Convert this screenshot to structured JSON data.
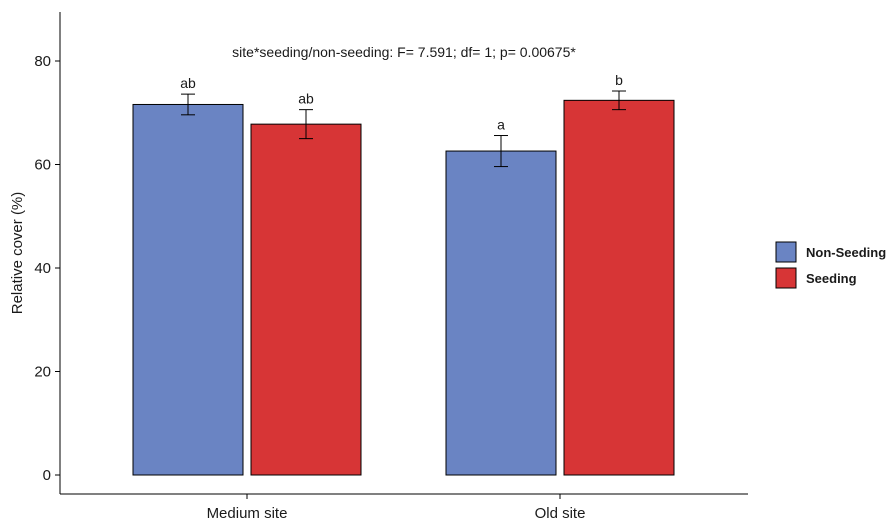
{
  "chart_data": {
    "type": "bar",
    "title": "",
    "annotation": "site*seeding/non-seeding: F= 7.591; df= 1; p= 0.00675*",
    "xlabel": "",
    "ylabel": "Relative cover (%)",
    "ylim": [
      0,
      90
    ],
    "yticks": [
      "0",
      "20",
      "40",
      "60",
      "80"
    ],
    "categories": [
      "Medium site",
      "Old site"
    ],
    "series": [
      {
        "name": "Non-Seeding",
        "color": "#6a84c3",
        "values": [
          71.6,
          62.6
        ],
        "errors": [
          2.0,
          3.0
        ],
        "labels": [
          "ab",
          "a"
        ]
      },
      {
        "name": "Seeding",
        "color": "#d73536",
        "values": [
          67.8,
          72.4
        ],
        "errors": [
          2.8,
          1.8
        ],
        "labels": [
          "ab",
          "b"
        ]
      }
    ],
    "legend_position": "right",
    "grid": false
  }
}
